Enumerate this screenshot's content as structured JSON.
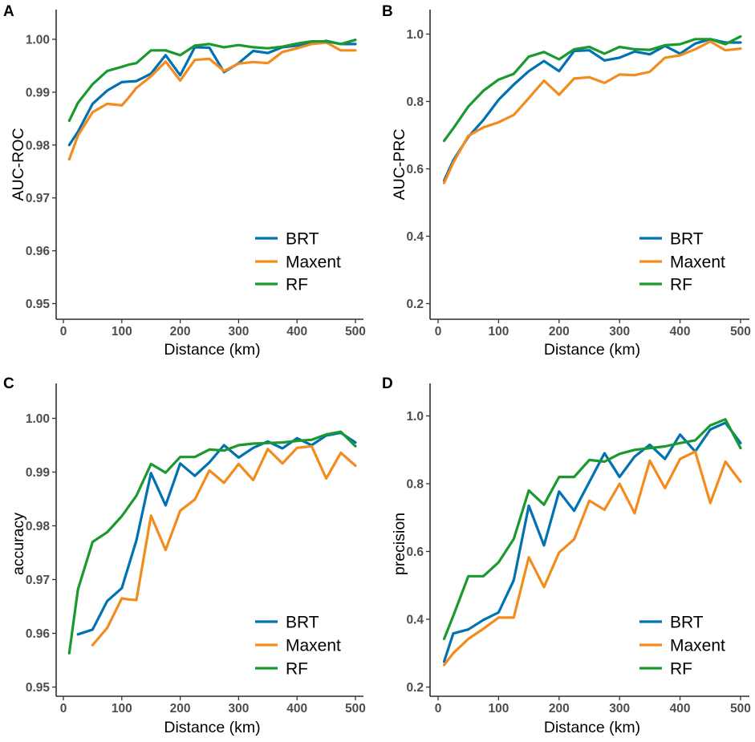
{
  "legend": [
    {
      "name": "BRT",
      "color": "#0072B2"
    },
    {
      "name": "Maxent",
      "color": "#F28C1E"
    },
    {
      "name": "RF",
      "color": "#1A9A2E"
    }
  ],
  "chart_data": [
    {
      "panel": "A",
      "type": "line",
      "xlabel": "Distance (km)",
      "ylabel": "AUC-ROC",
      "xlim": [
        0,
        500
      ],
      "ylim": [
        0.95,
        1.0
      ],
      "xticks": [
        0,
        100,
        200,
        300,
        400,
        500
      ],
      "xtick_labels": [
        "0",
        "100",
        "200",
        "300",
        "400",
        "500"
      ],
      "yticks": [
        0.95,
        0.96,
        0.97,
        0.98,
        0.99,
        1.0
      ],
      "ytick_labels": [
        "0.95",
        "0.96",
        "0.97",
        "0.98",
        "0.99",
        "1.00"
      ],
      "legend_position": "bottom-right",
      "x": [
        10,
        25,
        50,
        75,
        100,
        112,
        125,
        150,
        175,
        200,
        225,
        250,
        275,
        300,
        325,
        350,
        375,
        400,
        425,
        450,
        475,
        500
      ],
      "series": [
        {
          "name": "BRT",
          "values": [
            0.98,
            0.9825,
            0.9878,
            0.9903,
            0.9919,
            0.992,
            0.9921,
            0.9935,
            0.997,
            0.9932,
            0.9985,
            0.9984,
            0.9938,
            0.9955,
            0.9978,
            0.9974,
            0.9985,
            0.9988,
            0.9992,
            0.9997,
            0.9991,
            0.9991
          ]
        },
        {
          "name": "Maxent",
          "values": [
            0.9773,
            0.9818,
            0.9862,
            0.9878,
            0.9875,
            0.989,
            0.9908,
            0.993,
            0.9958,
            0.9922,
            0.9961,
            0.9963,
            0.994,
            0.9954,
            0.9957,
            0.9955,
            0.9976,
            0.9983,
            0.9991,
            0.9994,
            0.9979,
            0.9979
          ]
        },
        {
          "name": "RF",
          "values": [
            0.9846,
            0.988,
            0.9915,
            0.994,
            0.9948,
            0.9952,
            0.9955,
            0.9979,
            0.9979,
            0.997,
            0.9988,
            0.9991,
            0.9985,
            0.9989,
            0.9985,
            0.9983,
            0.9986,
            0.9992,
            0.9996,
            0.9996,
            0.9991,
            0.9999
          ]
        }
      ]
    },
    {
      "panel": "B",
      "type": "line",
      "xlabel": "Distance (km)",
      "ylabel": "AUC-PRC",
      "xlim": [
        0,
        500
      ],
      "ylim": [
        0.2,
        1.0
      ],
      "xticks": [
        0,
        100,
        200,
        300,
        400,
        500
      ],
      "xtick_labels": [
        "0",
        "100",
        "200",
        "300",
        "400",
        "500"
      ],
      "yticks": [
        0.2,
        0.4,
        0.6,
        0.8,
        1.0
      ],
      "ytick_labels": [
        "0.2",
        "0.4",
        "0.6",
        "0.8",
        "1.0"
      ],
      "legend_position": "bottom-right",
      "x": [
        10,
        25,
        50,
        75,
        100,
        125,
        150,
        175,
        200,
        225,
        250,
        275,
        300,
        325,
        350,
        375,
        400,
        425,
        450,
        475,
        500
      ],
      "series": [
        {
          "name": "BRT",
          "values": [
            0.565,
            0.625,
            0.695,
            0.745,
            0.805,
            0.85,
            0.89,
            0.92,
            0.89,
            0.95,
            0.952,
            0.922,
            0.93,
            0.948,
            0.94,
            0.965,
            0.942,
            0.972,
            0.985,
            0.975,
            0.975
          ]
        },
        {
          "name": "Maxent",
          "values": [
            0.558,
            0.618,
            0.698,
            0.723,
            0.738,
            0.76,
            0.81,
            0.862,
            0.82,
            0.868,
            0.872,
            0.855,
            0.88,
            0.878,
            0.888,
            0.93,
            0.937,
            0.955,
            0.978,
            0.952,
            0.957
          ]
        },
        {
          "name": "RF",
          "values": [
            0.683,
            0.72,
            0.785,
            0.832,
            0.865,
            0.882,
            0.933,
            0.947,
            0.925,
            0.955,
            0.962,
            0.942,
            0.962,
            0.955,
            0.953,
            0.967,
            0.97,
            0.985,
            0.985,
            0.97,
            0.993
          ]
        }
      ]
    },
    {
      "panel": "C",
      "type": "line",
      "xlabel": "Distance (km)",
      "ylabel": "accuracy",
      "xlim": [
        0,
        500
      ],
      "ylim": [
        0.95,
        1.0
      ],
      "xticks": [
        0,
        100,
        200,
        300,
        400,
        500
      ],
      "xtick_labels": [
        "0",
        "100",
        "200",
        "300",
        "400",
        "500"
      ],
      "yticks": [
        0.95,
        0.96,
        0.97,
        0.98,
        0.99,
        1.0
      ],
      "ytick_labels": [
        "0.95",
        "0.96",
        "0.97",
        "0.98",
        "0.99",
        "1.00"
      ],
      "legend_position": "bottom-right",
      "series": [
        {
          "name": "BRT",
          "x": [
            25,
            50,
            75,
            100,
            125,
            150,
            175,
            200,
            225,
            250,
            275,
            300,
            325,
            350,
            375,
            400,
            425,
            450,
            475,
            500
          ],
          "values": [
            0.9598,
            0.9607,
            0.966,
            0.9684,
            0.9773,
            0.9898,
            0.9838,
            0.9916,
            0.9893,
            0.9918,
            0.995,
            0.9927,
            0.9945,
            0.9957,
            0.9944,
            0.9963,
            0.995,
            0.9968,
            0.9973,
            0.9955
          ]
        },
        {
          "name": "Maxent",
          "x": [
            50,
            75,
            100,
            112,
            125,
            150,
            175,
            200,
            225,
            250,
            275,
            300,
            325,
            350,
            375,
            400,
            425,
            450,
            475,
            500
          ],
          "values": [
            0.9578,
            0.961,
            0.9665,
            0.9663,
            0.9662,
            0.9819,
            0.9755,
            0.9828,
            0.9849,
            0.9903,
            0.988,
            0.9915,
            0.9885,
            0.9943,
            0.9916,
            0.9945,
            0.9948,
            0.9888,
            0.9936,
            0.9912
          ]
        },
        {
          "name": "RF",
          "x": [
            10,
            25,
            50,
            75,
            100,
            125,
            150,
            175,
            200,
            225,
            250,
            275,
            300,
            325,
            350,
            375,
            400,
            425,
            450,
            475,
            500
          ],
          "values": [
            0.9563,
            0.9682,
            0.977,
            0.9788,
            0.9818,
            0.9856,
            0.9915,
            0.9899,
            0.9928,
            0.9928,
            0.9942,
            0.994,
            0.995,
            0.9953,
            0.9954,
            0.9955,
            0.9958,
            0.996,
            0.997,
            0.9975,
            0.9948
          ]
        }
      ]
    },
    {
      "panel": "D",
      "type": "line",
      "xlabel": "Distance (km)",
      "ylabel": "precision",
      "xlim": [
        0,
        500
      ],
      "ylim": [
        0.2,
        1.0
      ],
      "xticks": [
        0,
        100,
        200,
        300,
        400,
        500
      ],
      "xtick_labels": [
        "0",
        "100",
        "200",
        "300",
        "400",
        "500"
      ],
      "yticks": [
        0.2,
        0.4,
        0.6,
        0.8,
        1.0
      ],
      "ytick_labels": [
        "0.2",
        "0.4",
        "0.6",
        "0.8",
        "1.0"
      ],
      "legend_position": "bottom-right",
      "x": [
        10,
        25,
        50,
        75,
        100,
        125,
        150,
        175,
        200,
        225,
        250,
        275,
        300,
        325,
        350,
        375,
        400,
        425,
        450,
        475,
        500
      ],
      "series": [
        {
          "name": "BRT",
          "values": [
            0.275,
            0.358,
            0.37,
            0.398,
            0.42,
            0.515,
            0.735,
            0.618,
            0.777,
            0.72,
            0.805,
            0.89,
            0.82,
            0.88,
            0.915,
            0.873,
            0.945,
            0.895,
            0.96,
            0.98,
            0.92
          ]
        },
        {
          "name": "Maxent",
          "values": [
            0.265,
            0.3,
            0.342,
            0.372,
            0.405,
            0.405,
            0.583,
            0.495,
            0.597,
            0.636,
            0.75,
            0.723,
            0.8,
            0.713,
            0.868,
            0.787,
            0.873,
            0.895,
            0.743,
            0.865,
            0.806
          ]
        },
        {
          "name": "RF",
          "values": [
            0.342,
            0.41,
            0.527,
            0.527,
            0.568,
            0.637,
            0.78,
            0.738,
            0.82,
            0.82,
            0.87,
            0.865,
            0.888,
            0.9,
            0.905,
            0.91,
            0.92,
            0.928,
            0.972,
            0.99,
            0.905
          ]
        }
      ]
    }
  ]
}
